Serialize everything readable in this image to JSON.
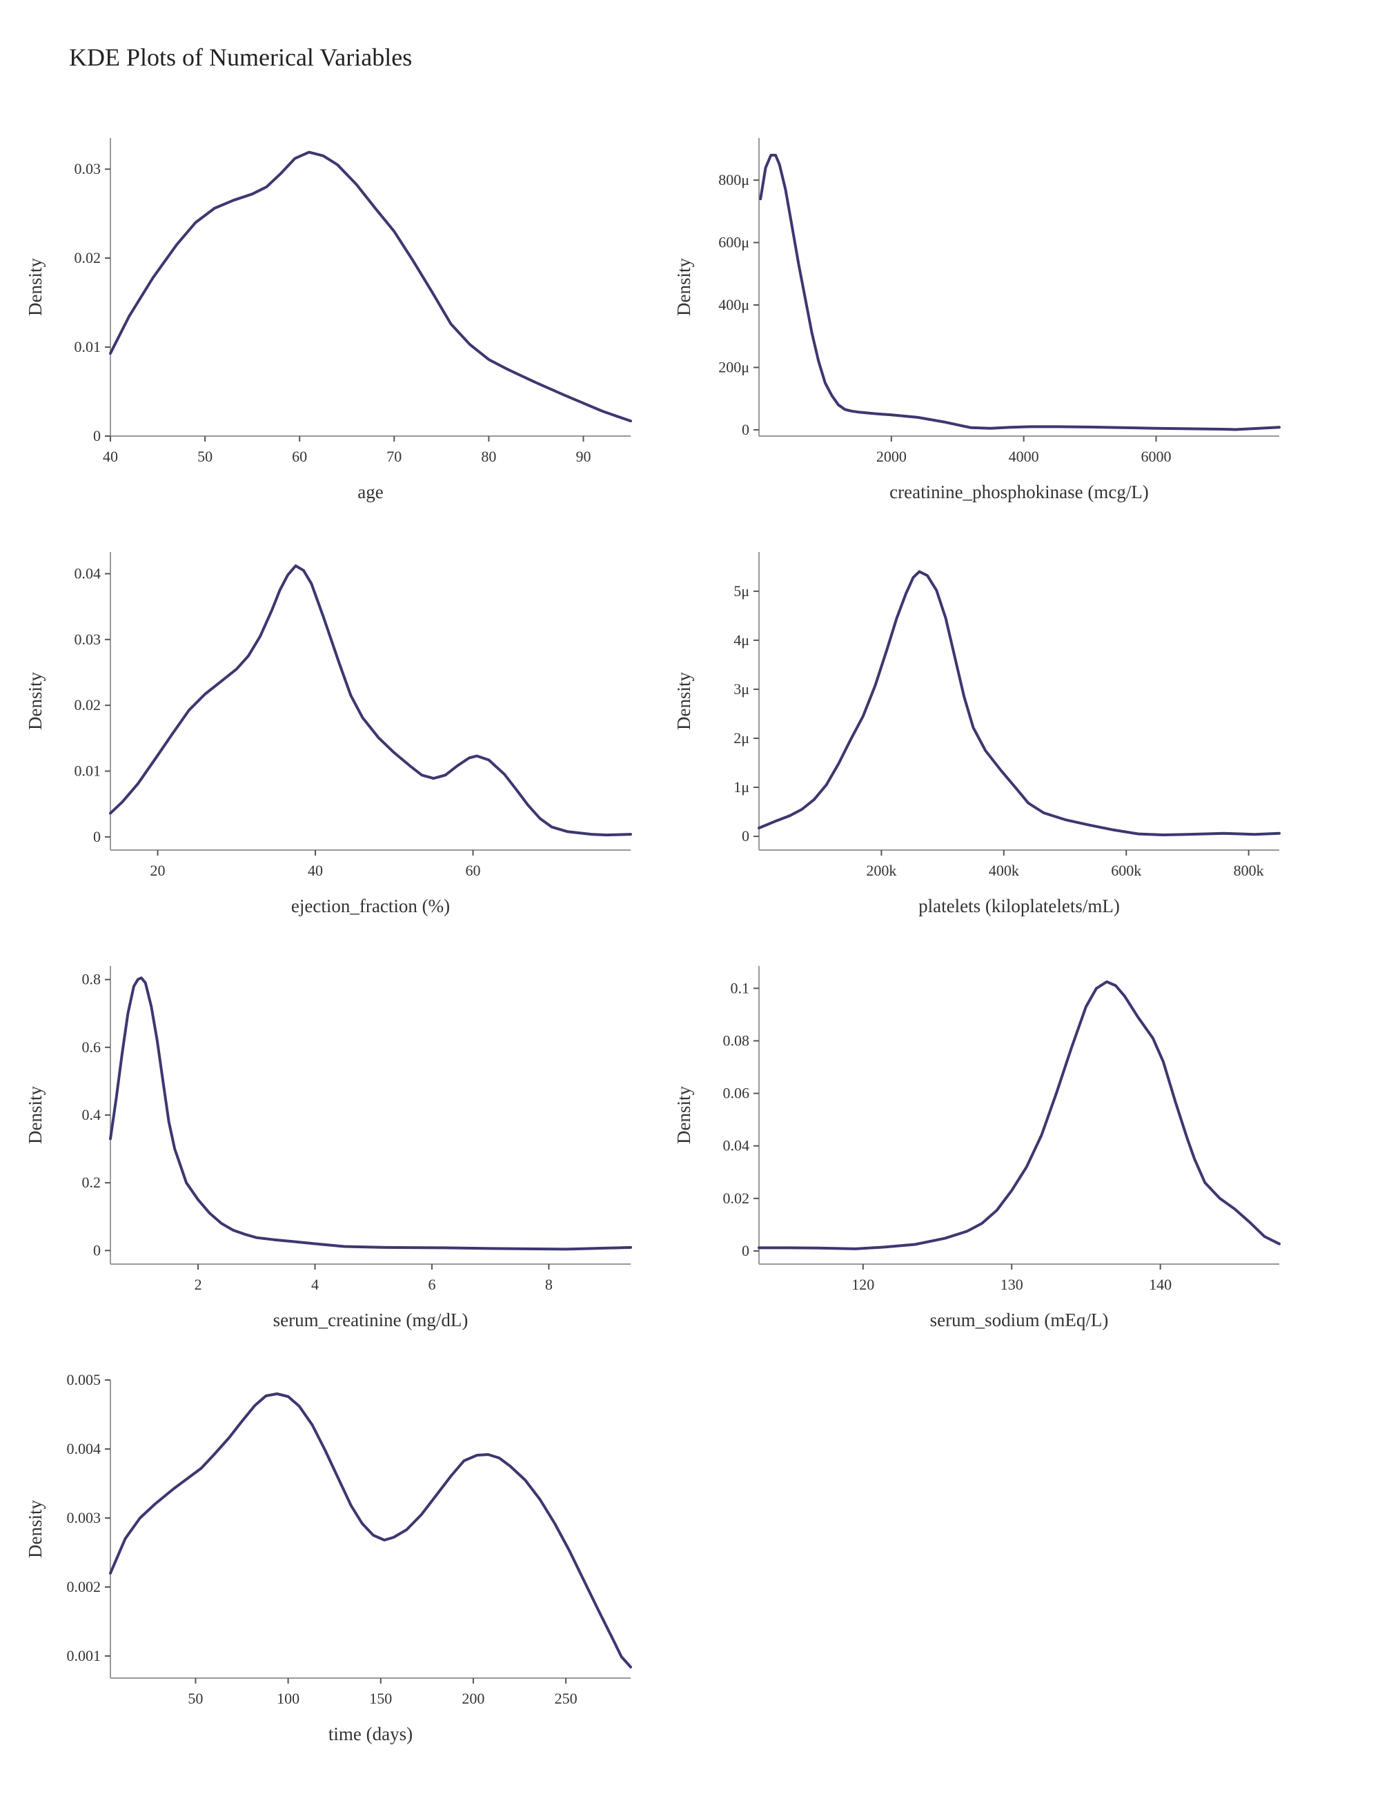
{
  "title": "KDE Plots of Numerical Variables",
  "line_color": "#3d3770",
  "chart_data": [
    {
      "type": "line",
      "xlabel": "age",
      "ylabel": "Density",
      "xlim": [
        40,
        95
      ],
      "ylim": [
        0,
        0.0335
      ],
      "xticks": [
        {
          "v": 40,
          "label": "40"
        },
        {
          "v": 50,
          "label": "50"
        },
        {
          "v": 60,
          "label": "60"
        },
        {
          "v": 70,
          "label": "70"
        },
        {
          "v": 80,
          "label": "80"
        },
        {
          "v": 90,
          "label": "90"
        }
      ],
      "yticks": [
        {
          "v": 0,
          "label": "0"
        },
        {
          "v": 0.01,
          "label": "0.01"
        },
        {
          "v": 0.02,
          "label": "0.02"
        },
        {
          "v": 0.03,
          "label": "0.03"
        }
      ],
      "x": [
        40,
        42,
        44.5,
        47,
        49,
        51,
        53,
        55,
        56.5,
        58,
        59.5,
        61,
        62.5,
        64,
        66,
        68,
        70,
        72,
        74,
        76,
        78,
        80,
        82,
        85,
        88,
        90,
        92,
        95
      ],
      "y": [
        0.0093,
        0.0135,
        0.0178,
        0.0215,
        0.024,
        0.0256,
        0.0265,
        0.0272,
        0.028,
        0.0295,
        0.0312,
        0.0319,
        0.0315,
        0.0305,
        0.0283,
        0.0256,
        0.023,
        0.0197,
        0.0162,
        0.0126,
        0.0103,
        0.0086,
        0.0075,
        0.006,
        0.0046,
        0.0037,
        0.0028,
        0.0017
      ]
    },
    {
      "type": "line",
      "xlabel": "creatinine_phosphokinase (mcg/L)",
      "ylabel": "Density",
      "xlim": [
        0,
        7861
      ],
      "ylim": [
        -2e-05,
        0.000935
      ],
      "xticks": [
        {
          "v": 2000,
          "label": "2000"
        },
        {
          "v": 4000,
          "label": "4000"
        },
        {
          "v": 6000,
          "label": "6000"
        }
      ],
      "yticks": [
        {
          "v": 0,
          "label": "0"
        },
        {
          "v": 0.0002,
          "label": "200μ"
        },
        {
          "v": 0.0004,
          "label": "400μ"
        },
        {
          "v": 0.0006,
          "label": "600μ"
        },
        {
          "v": 0.0008,
          "label": "800μ"
        }
      ],
      "x": [
        23,
        100,
        180,
        250,
        310,
        400,
        500,
        600,
        700,
        800,
        900,
        1000,
        1100,
        1200,
        1300,
        1400,
        1500,
        1600,
        1800,
        2000,
        2400,
        2800,
        3200,
        3500,
        3800,
        4100,
        4500,
        5000,
        6000,
        7000,
        7200,
        7861
      ],
      "y": [
        0.00074,
        0.00084,
        0.00088,
        0.00088,
        0.00085,
        0.00077,
        0.00065,
        0.00053,
        0.00042,
        0.00031,
        0.00022,
        0.00015,
        0.00011,
        8e-05,
        6.5e-05,
        6e-05,
        5.7e-05,
        5.5e-05,
        5.1e-05,
        4.8e-05,
        4e-05,
        2.5e-05,
        7e-06,
        5e-06,
        8e-06,
        1e-05,
        1e-05,
        9e-06,
        5e-06,
        2e-06,
        1e-06,
        8e-06
      ]
    },
    {
      "type": "line",
      "xlabel": "ejection_fraction (%)",
      "ylabel": "Density",
      "xlim": [
        14,
        80
      ],
      "ylim": [
        -0.002,
        0.0433
      ],
      "xticks": [
        {
          "v": 20,
          "label": "20"
        },
        {
          "v": 40,
          "label": "40"
        },
        {
          "v": 60,
          "label": "60"
        }
      ],
      "yticks": [
        {
          "v": 0,
          "label": "0"
        },
        {
          "v": 0.01,
          "label": "0.01"
        },
        {
          "v": 0.02,
          "label": "0.02"
        },
        {
          "v": 0.03,
          "label": "0.03"
        },
        {
          "v": 0.04,
          "label": "0.04"
        }
      ],
      "x": [
        14,
        15.5,
        17.5,
        20,
        22,
        24,
        26,
        28,
        30,
        31.5,
        33,
        34.5,
        35.5,
        36.5,
        37.5,
        38.5,
        39.5,
        41,
        43,
        44.5,
        46,
        48,
        50,
        52,
        53.5,
        55,
        56.5,
        58,
        59.5,
        60.5,
        62,
        64,
        65.5,
        67,
        68.5,
        70,
        72,
        75,
        77,
        80
      ],
      "y": [
        0.0036,
        0.0053,
        0.0081,
        0.0124,
        0.0159,
        0.0193,
        0.0217,
        0.0236,
        0.0255,
        0.0275,
        0.0305,
        0.0345,
        0.0375,
        0.0398,
        0.0412,
        0.0405,
        0.0385,
        0.0335,
        0.0265,
        0.0215,
        0.0181,
        0.0151,
        0.0128,
        0.0108,
        0.0094,
        0.0089,
        0.0094,
        0.0108,
        0.012,
        0.0123,
        0.0117,
        0.0095,
        0.0072,
        0.0048,
        0.0028,
        0.0015,
        0.0008,
        0.0004,
        0.0003,
        0.0004
      ]
    },
    {
      "type": "line",
      "xlabel": "platelets (kiloplatelets/mL)",
      "ylabel": "Density",
      "xlim": [
        0,
        850000
      ],
      "ylim": [
        -2.8e-07,
        5.8e-06
      ],
      "xticks": [
        {
          "v": 200000,
          "label": "200k"
        },
        {
          "v": 400000,
          "label": "400k"
        },
        {
          "v": 600000,
          "label": "600k"
        },
        {
          "v": 800000,
          "label": "800k"
        }
      ],
      "yticks": [
        {
          "v": 0,
          "label": "0"
        },
        {
          "v": 1e-06,
          "label": "1μ"
        },
        {
          "v": 2e-06,
          "label": "2μ"
        },
        {
          "v": 3e-06,
          "label": "3μ"
        },
        {
          "v": 4e-06,
          "label": "4μ"
        },
        {
          "v": 5e-06,
          "label": "5μ"
        }
      ],
      "x": [
        0,
        25000,
        50000,
        70000,
        90000,
        110000,
        130000,
        150000,
        170000,
        190000,
        210000,
        225000,
        240000,
        252000,
        262000,
        275000,
        290000,
        305000,
        320000,
        335000,
        350000,
        370000,
        395000,
        420000,
        440000,
        465000,
        500000,
        540000,
        580000,
        620000,
        660000,
        700000,
        760000,
        810000,
        850000
      ],
      "y": [
        1.7e-07,
        3e-07,
        4.2e-07,
        5.5e-07,
        7.5e-07,
        1.05e-06,
        1.48e-06,
        1.98e-06,
        2.45e-06,
        3.08e-06,
        3.85e-06,
        4.45e-06,
        4.95e-06,
        5.28e-06,
        5.4e-06,
        5.32e-06,
        5.02e-06,
        4.45e-06,
        3.65e-06,
        2.85e-06,
        2.22e-06,
        1.75e-06,
        1.35e-06,
        9.8e-07,
        6.8e-07,
        4.8e-07,
        3.4e-07,
        2.3e-07,
        1.3e-07,
        5e-08,
        3e-08,
        4e-08,
        6e-08,
        4e-08,
        6e-08
      ]
    },
    {
      "type": "line",
      "xlabel": "serum_creatinine (mg/dL)",
      "ylabel": "Density",
      "xlim": [
        0.5,
        9.4
      ],
      "ylim": [
        -0.04,
        0.84
      ],
      "xticks": [
        {
          "v": 2,
          "label": "2"
        },
        {
          "v": 4,
          "label": "4"
        },
        {
          "v": 6,
          "label": "6"
        },
        {
          "v": 8,
          "label": "8"
        }
      ],
      "yticks": [
        {
          "v": 0,
          "label": "0"
        },
        {
          "v": 0.2,
          "label": "0.2"
        },
        {
          "v": 0.4,
          "label": "0.4"
        },
        {
          "v": 0.6,
          "label": "0.6"
        },
        {
          "v": 0.8,
          "label": "0.8"
        }
      ],
      "x": [
        0.5,
        0.6,
        0.7,
        0.8,
        0.9,
        0.97,
        1.03,
        1.1,
        1.2,
        1.3,
        1.4,
        1.5,
        1.6,
        1.7,
        1.8,
        2.0,
        2.2,
        2.4,
        2.6,
        2.8,
        3.0,
        3.3,
        3.6,
        4.0,
        4.5,
        5.2,
        6.2,
        7.0,
        7.6,
        8.3,
        9.4
      ],
      "y": [
        0.33,
        0.45,
        0.58,
        0.7,
        0.78,
        0.8,
        0.805,
        0.79,
        0.72,
        0.62,
        0.5,
        0.38,
        0.3,
        0.25,
        0.2,
        0.15,
        0.11,
        0.08,
        0.06,
        0.048,
        0.038,
        0.032,
        0.027,
        0.02,
        0.012,
        0.009,
        0.008,
        0.006,
        0.005,
        0.004,
        0.009
      ]
    },
    {
      "type": "line",
      "xlabel": "serum_sodium (mEq/L)",
      "ylabel": "Density",
      "xlim": [
        113,
        148
      ],
      "ylim": [
        -0.005,
        0.1085
      ],
      "xticks": [
        {
          "v": 120,
          "label": "120"
        },
        {
          "v": 130,
          "label": "130"
        },
        {
          "v": 140,
          "label": "140"
        }
      ],
      "yticks": [
        {
          "v": 0,
          "label": "0"
        },
        {
          "v": 0.02,
          "label": "0.02"
        },
        {
          "v": 0.04,
          "label": "0.04"
        },
        {
          "v": 0.06,
          "label": "0.06"
        },
        {
          "v": 0.08,
          "label": "0.08"
        },
        {
          "v": 0.1,
          "label": "0.1"
        }
      ],
      "x": [
        113,
        115,
        117,
        119.5,
        121.5,
        123.5,
        125.5,
        127,
        128,
        129,
        130,
        131,
        132,
        133,
        134,
        135,
        135.7,
        136.4,
        137,
        137.6,
        138.5,
        139.5,
        140.2,
        141,
        141.8,
        142.3,
        143,
        144,
        145,
        146,
        147,
        148
      ],
      "y": [
        0.0012,
        0.0012,
        0.0011,
        0.0008,
        0.0015,
        0.0025,
        0.0048,
        0.0075,
        0.0105,
        0.0155,
        0.023,
        0.032,
        0.044,
        0.06,
        0.077,
        0.093,
        0.1,
        0.1025,
        0.101,
        0.097,
        0.089,
        0.081,
        0.072,
        0.057,
        0.043,
        0.035,
        0.026,
        0.02,
        0.016,
        0.011,
        0.0055,
        0.0027
      ]
    },
    {
      "type": "line",
      "xlabel": "time (days)",
      "ylabel": "Density",
      "xlim": [
        4,
        285
      ],
      "ylim": [
        0.00068,
        0.005
      ],
      "xticks": [
        {
          "v": 50,
          "label": "50"
        },
        {
          "v": 100,
          "label": "100"
        },
        {
          "v": 150,
          "label": "150"
        },
        {
          "v": 200,
          "label": "200"
        },
        {
          "v": 250,
          "label": "250"
        }
      ],
      "yticks": [
        {
          "v": 0.001,
          "label": "0.001"
        },
        {
          "v": 0.002,
          "label": "0.002"
        },
        {
          "v": 0.003,
          "label": "0.003"
        },
        {
          "v": 0.004,
          "label": "0.004"
        },
        {
          "v": 0.005,
          "label": "0.005"
        }
      ],
      "x": [
        4,
        12,
        20,
        28,
        38,
        46,
        53,
        60,
        68,
        75,
        82,
        88,
        94,
        100,
        106,
        113,
        120,
        127,
        134,
        140,
        146,
        152,
        157,
        164,
        172,
        180,
        188,
        195,
        202,
        208,
        214,
        220,
        228,
        236,
        244,
        252,
        260,
        268,
        276,
        280,
        285
      ],
      "y": [
        0.0022,
        0.0027,
        0.003,
        0.0032,
        0.00342,
        0.00358,
        0.00372,
        0.00392,
        0.00416,
        0.0044,
        0.00463,
        0.00477,
        0.0048,
        0.00476,
        0.00462,
        0.00435,
        0.00398,
        0.00358,
        0.00318,
        0.00292,
        0.00275,
        0.00268,
        0.00272,
        0.00283,
        0.00305,
        0.00333,
        0.00361,
        0.00383,
        0.00391,
        0.00392,
        0.00387,
        0.00375,
        0.00355,
        0.00327,
        0.00292,
        0.00252,
        0.00208,
        0.00164,
        0.00121,
        0.00099,
        0.00084
      ]
    }
  ]
}
